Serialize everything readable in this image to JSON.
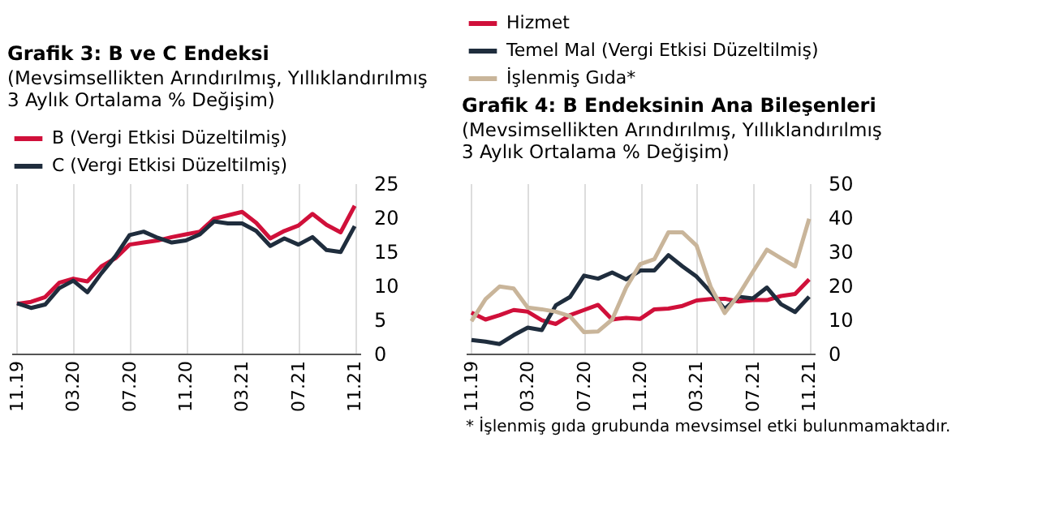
{
  "chart_data": [
    {
      "type": "line",
      "title": "Grafik 3: B ve C Endeksi",
      "subtitle": "(Mevsimsellikten Arındırılmış, Yıllıklandırılmış 3 Aylık Ortalama % Değişim)",
      "categories": [
        "11.19",
        null,
        null,
        null,
        "03.20",
        null,
        null,
        null,
        "07.20",
        null,
        null,
        null,
        "11.20",
        null,
        null,
        null,
        "03.21",
        null,
        null,
        null,
        "07.21",
        null,
        null,
        null,
        "11.21"
      ],
      "series": [
        {
          "name": "B (Vergi Etkisi Düzeltilmiş)",
          "color": "#d0103a",
          "values": [
            7.3,
            7.6,
            8.3,
            10.4,
            11.0,
            10.6,
            12.8,
            14.0,
            16.0,
            16.3,
            16.6,
            17.1,
            17.5,
            17.9,
            19.8,
            20.3,
            20.8,
            19.2,
            16.9,
            18.0,
            18.8,
            20.5,
            18.9,
            17.8,
            21.7
          ]
        },
        {
          "name": "C (Vergi Etkisi Düzeltilmiş)",
          "color": "#1f2d3d",
          "values": [
            7.4,
            6.7,
            7.2,
            9.6,
            10.7,
            9.0,
            11.8,
            14.3,
            17.4,
            17.9,
            17.0,
            16.3,
            16.6,
            17.5,
            19.4,
            19.1,
            19.1,
            18.0,
            15.8,
            16.9,
            16.0,
            17.1,
            15.2,
            14.9,
            18.7
          ]
        }
      ],
      "ylim": [
        0,
        25
      ],
      "yticks": [
        0,
        5,
        10,
        15,
        20,
        25
      ],
      "grid": "x",
      "legend": "top",
      "marker": "none",
      "line_style": "solid"
    },
    {
      "type": "line",
      "title": "Grafik 4: B Endeksinin Ana Bileşenleri",
      "subtitle": "(Mevsimsellikten Arındırılmış, Yıllıklandırılmış 3 Aylık Ortalama % Değişim)",
      "categories": [
        "11.19",
        null,
        null,
        null,
        "03.20",
        null,
        null,
        null,
        "07.20",
        null,
        null,
        null,
        "11.20",
        null,
        null,
        null,
        "03.21",
        null,
        null,
        null,
        "07.21",
        null,
        null,
        null,
        "11.21"
      ],
      "series": [
        {
          "name": "Hizmet",
          "color": "#d0103a",
          "values": [
            12.0,
            10.0,
            11.3,
            12.8,
            12.3,
            9.8,
            8.7,
            11.3,
            12.8,
            14.3,
            10.0,
            10.5,
            10.2,
            13.0,
            13.2,
            14.0,
            15.6,
            16.0,
            16.1,
            15.3,
            15.7,
            15.7,
            16.9,
            17.5,
            21.8
          ]
        },
        {
          "name": "Temel Mal (Vergi Etkisi Düzeltilmiş)",
          "color": "#1f2d3d",
          "values": [
            4.0,
            3.5,
            2.8,
            5.4,
            7.6,
            6.9,
            14.2,
            16.6,
            22.9,
            22.0,
            23.8,
            21.8,
            24.4,
            24.4,
            28.9,
            25.6,
            22.6,
            18.1,
            13.1,
            16.7,
            16.2,
            19.4,
            14.5,
            12.2,
            16.7
          ]
        },
        {
          "name": "İşlenmiş Gıda*",
          "color": "#c9b59a",
          "values": [
            9.5,
            16.0,
            19.7,
            19.1,
            13.5,
            13.0,
            12.3,
            11.0,
            6.3,
            6.5,
            10.0,
            19.4,
            26.3,
            27.7,
            35.6,
            35.6,
            31.7,
            19.6,
            11.9,
            17.3,
            24.0,
            30.5,
            28.0,
            25.6,
            39.6
          ]
        }
      ],
      "ylim": [
        0,
        50
      ],
      "yticks": [
        0,
        10,
        20,
        30,
        40,
        50
      ],
      "grid": "x",
      "legend": "top",
      "marker": "none",
      "line_style": "solid",
      "annotations": [
        "* İşlenmiş gıda grubunda mevsimsel etki bulunmamaktadır."
      ]
    }
  ]
}
